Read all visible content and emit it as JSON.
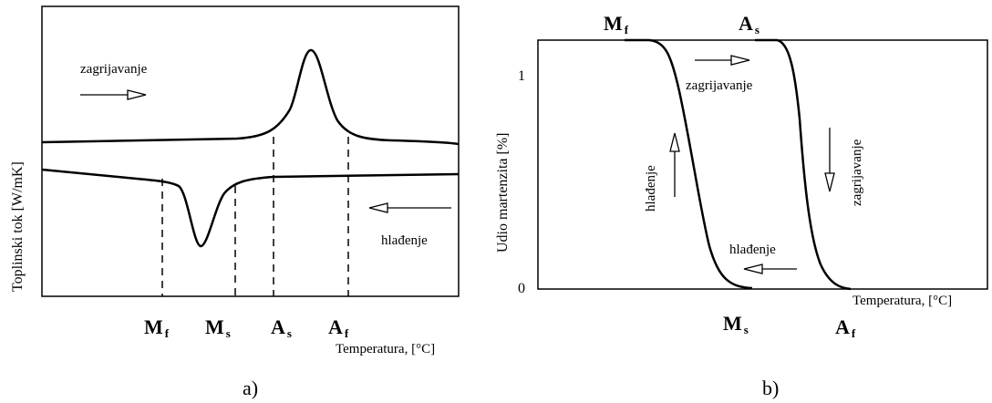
{
  "panel_a": {
    "ylabel": "Toplinski tok [W/mK]",
    "xlabel": "Temperatura, [°C]",
    "heating_label": "zagrijavanje",
    "cooling_label": "hlađenje",
    "marker_main": [
      "M",
      "M",
      "A",
      "A"
    ],
    "marker_sub": [
      "f",
      "s",
      "s",
      "f"
    ],
    "caption": "a)"
  },
  "panel_b": {
    "ylabel": "Udio martenzita [%]",
    "xlabel": "Temperatura, [°C]",
    "y_tick_top": "1",
    "y_tick_bottom": "0",
    "top_markers_main": [
      "M",
      "A"
    ],
    "top_markers_sub": [
      "f",
      "s"
    ],
    "bottom_markers_main": [
      "M",
      "A"
    ],
    "bottom_markers_sub": [
      "s",
      "f"
    ],
    "heating_label_top": "zagrijavanje",
    "heating_label_side": "zagrijavanje",
    "cooling_label_bottom": "hlađenje",
    "cooling_label_side": "hlađenje",
    "caption": "b)"
  }
}
